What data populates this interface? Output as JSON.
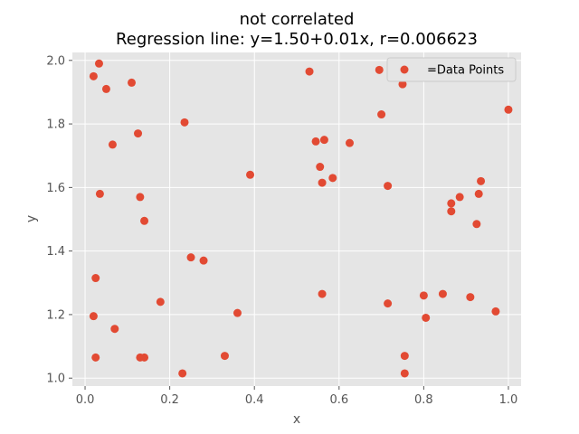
{
  "chart_data": {
    "type": "scatter",
    "title": "not correlated",
    "subtitle": "Regression line: y=1.50+0.01x, r=0.006623",
    "xlabel": "x",
    "ylabel": "y",
    "xlim": [
      -0.03,
      1.03
    ],
    "ylim": [
      0.975,
      2.025
    ],
    "xticks": [
      0.0,
      0.2,
      0.4,
      0.6,
      0.8,
      1.0
    ],
    "xtick_labels": [
      "0.0",
      "0.2",
      "0.4",
      "0.6",
      "0.8",
      "1.0"
    ],
    "yticks": [
      1.0,
      1.2,
      1.4,
      1.6,
      1.8,
      2.0
    ],
    "ytick_labels": [
      "1.0",
      "1.2",
      "1.4",
      "1.6",
      "1.8",
      "2.0"
    ],
    "grid": true,
    "legend": {
      "position": "top-right",
      "entries": [
        "=Data Points"
      ]
    },
    "colors": {
      "background": "#e5e5e5",
      "grid": "#ffffff",
      "points": "#e24a33"
    },
    "series": [
      {
        "name": "=Data Points",
        "points": [
          [
            0.02,
            1.95
          ],
          [
            0.033,
            1.99
          ],
          [
            0.05,
            1.91
          ],
          [
            0.11,
            1.93
          ],
          [
            0.065,
            1.735
          ],
          [
            0.125,
            1.77
          ],
          [
            0.235,
            1.805
          ],
          [
            0.035,
            1.58
          ],
          [
            0.13,
            1.57
          ],
          [
            0.14,
            1.495
          ],
          [
            0.025,
            1.315
          ],
          [
            0.02,
            1.195
          ],
          [
            0.07,
            1.155
          ],
          [
            0.178,
            1.24
          ],
          [
            0.025,
            1.065
          ],
          [
            0.13,
            1.065
          ],
          [
            0.14,
            1.065
          ],
          [
            0.25,
            1.38
          ],
          [
            0.28,
            1.37
          ],
          [
            0.23,
            1.015
          ],
          [
            0.33,
            1.07
          ],
          [
            0.36,
            1.205
          ],
          [
            0.39,
            1.64
          ],
          [
            0.53,
            1.965
          ],
          [
            0.545,
            1.745
          ],
          [
            0.565,
            1.75
          ],
          [
            0.555,
            1.665
          ],
          [
            0.56,
            1.615
          ],
          [
            0.585,
            1.63
          ],
          [
            0.625,
            1.74
          ],
          [
            0.56,
            1.265
          ],
          [
            0.695,
            1.97
          ],
          [
            0.75,
            1.925
          ],
          [
            0.7,
            1.83
          ],
          [
            0.715,
            1.605
          ],
          [
            0.715,
            1.235
          ],
          [
            0.755,
            1.07
          ],
          [
            0.755,
            1.015
          ],
          [
            0.8,
            1.26
          ],
          [
            0.805,
            1.19
          ],
          [
            0.845,
            1.265
          ],
          [
            0.865,
            1.55
          ],
          [
            0.865,
            1.525
          ],
          [
            0.885,
            1.57
          ],
          [
            0.935,
            1.62
          ],
          [
            0.93,
            1.58
          ],
          [
            0.925,
            1.485
          ],
          [
            0.91,
            1.255
          ],
          [
            0.97,
            1.21
          ],
          [
            1.0,
            1.845
          ]
        ]
      }
    ]
  }
}
